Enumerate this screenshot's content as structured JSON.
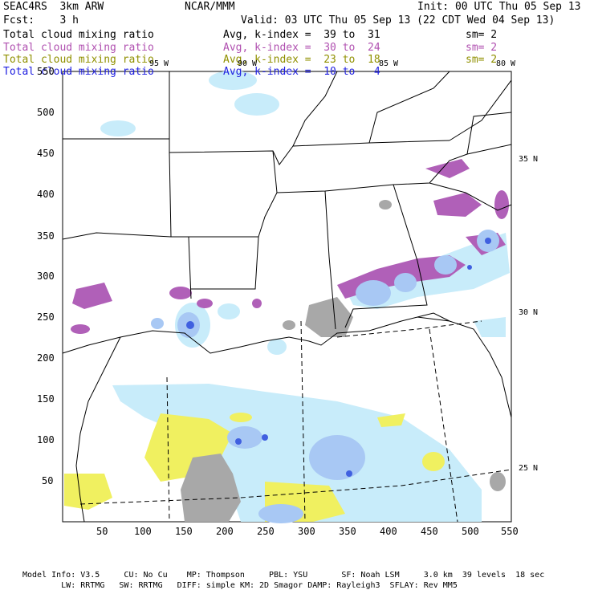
{
  "header": {
    "model": "SEAC4RS  3km ARW",
    "org": "NCAR/MMM",
    "init": "Init: 00 UTC Thu 05 Sep 13",
    "fcst": "Fcst:    3 h",
    "valid": "Valid: 03 UTC Thu 05 Sep 13 (22 CDT Wed 04 Sep 13)"
  },
  "fields": [
    {
      "name": "Total cloud mixing ratio",
      "avg": "Avg, k-index =  39 to  31",
      "sm": "sm= 2",
      "color": "#000000"
    },
    {
      "name": "Total cloud mixing ratio",
      "avg": "Avg, k-index =  30 to  24",
      "sm": "sm= 2",
      "color": "#b050b0"
    },
    {
      "name": "Total cloud mixing ratio",
      "avg": "Avg, k-index =  23 to  18",
      "sm": "sm= 2",
      "color": "#909000"
    },
    {
      "name": "Total cloud mixing ratio",
      "avg": "Avg, k-index =  10 to   4",
      "sm": "",
      "color": "#2020e0"
    }
  ],
  "axes": {
    "x_ticks": [
      "50",
      "100",
      "150",
      "200",
      "250",
      "300",
      "350",
      "400",
      "450",
      "500",
      "550"
    ],
    "y_ticks": [
      "50",
      "100",
      "150",
      "200",
      "250",
      "300",
      "350",
      "400",
      "450",
      "500",
      "550"
    ],
    "lon_labels": [
      "95 W",
      "90 W",
      "85 W",
      "80 W"
    ],
    "lat_labels": [
      "35 N",
      "30 N",
      "25 N"
    ]
  },
  "footer": {
    "line1": "Model Info: V3.5     CU: No Cu    MP: Thompson     PBL: YSU       SF: Noah LSM     3.0 km  39 levels  18 sec",
    "line2": "        LW: RRTMG   SW: RRTMG   DIFF: simple KM: 2D Smagor DAMP: Rayleigh3  SFLAY: Rev MM5"
  },
  "colors": {
    "gray": "#a8a8a8",
    "purple": "#b060b8",
    "yellow": "#f0f060",
    "lightblue": "#c8ecfa",
    "blue": "#a8c8f4",
    "darkblue": "#4060e0"
  }
}
